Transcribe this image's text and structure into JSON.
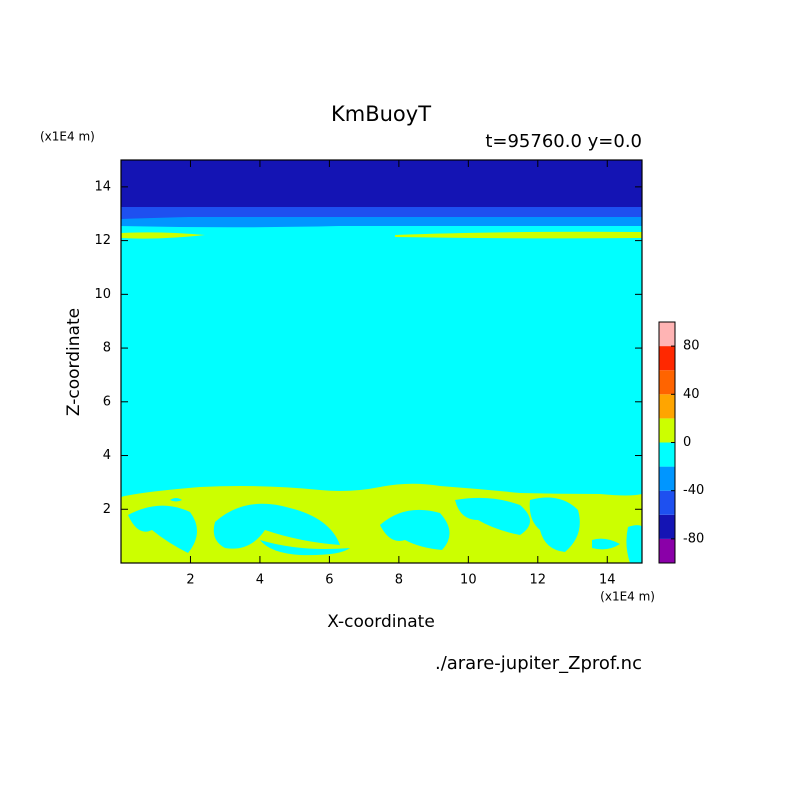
{
  "chart_data": {
    "type": "contour",
    "title": "KmBuoyT",
    "subtitle": "t=95760.0 y=0.0",
    "xlabel": "X-coordinate",
    "ylabel": "Z-coordinate",
    "xunit": "(x1E4 m)",
    "yunit": "(x1E4 m)",
    "source": "./arare-jupiter_Zprof.nc",
    "xlim": [
      0,
      15
    ],
    "ylim": [
      0,
      15
    ],
    "xticks": [
      2,
      4,
      6,
      8,
      10,
      12,
      14
    ],
    "yticks": [
      2,
      4,
      6,
      8,
      10,
      12,
      14
    ],
    "colorbar": {
      "levels": [
        -100,
        -80,
        -60,
        -40,
        -20,
        0,
        20,
        40,
        60,
        80,
        100
      ],
      "colors": [
        "#8a00a8",
        "#1414b4",
        "#1e50f0",
        "#0096ff",
        "#00ffff",
        "#ccff00",
        "#ffa500",
        "#ff6400",
        "#ff2800",
        "#ffb4b4"
      ],
      "ticks": [
        -80,
        -40,
        0,
        40,
        80
      ]
    }
  }
}
